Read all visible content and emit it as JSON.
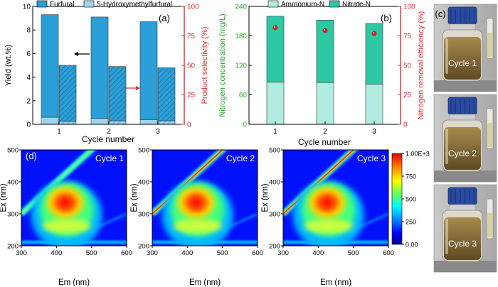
{
  "chart_data": [
    {
      "panel": "(a)",
      "type": "bar",
      "xlabel": "Cycle number",
      "categories": [
        "1",
        "2",
        "3"
      ],
      "left_axis": {
        "label": "Yield (wt.%)",
        "ylim": [
          0,
          10
        ],
        "ticks": [
          "0",
          "2",
          "4",
          "6",
          "8",
          "10"
        ]
      },
      "right_axis": {
        "label": "Product selectivity (%)",
        "ylim": [
          0,
          100
        ],
        "ticks": [
          "0",
          "25",
          "50",
          "75",
          "100"
        ]
      },
      "legend": [
        "Furfural",
        "5-Hydroxymethylfurfural"
      ],
      "series": [
        {
          "name": "Furfural yield (wt.%)",
          "axis": "left",
          "stack": "yield",
          "values": [
            8.7,
            8.6,
            8.3
          ]
        },
        {
          "name": "5-Hydroxymethylfurfural yield (wt.%)",
          "axis": "left",
          "stack": "yield",
          "values": [
            0.6,
            0.5,
            0.4
          ]
        },
        {
          "name": "Furfural selectivity (%)",
          "axis": "right",
          "stack": "selectivity",
          "hatched": true,
          "values": [
            47.5,
            46,
            45
          ]
        },
        {
          "name": "5-Hydroxymethylfurfural selectivity (%)",
          "axis": "right",
          "stack": "selectivity",
          "hatched": true,
          "values": [
            2.5,
            3,
            3
          ]
        }
      ],
      "arrows": [
        "left",
        "right"
      ]
    },
    {
      "panel": "(b)",
      "type": "bar",
      "xlabel": "Cycle number",
      "categories": [
        "1",
        "2",
        "3"
      ],
      "left_axis": {
        "label": "Nitrogen concentration (mg/L)",
        "ylim": [
          0,
          240
        ],
        "ticks": [
          "0",
          "60",
          "120",
          "180",
          "240"
        ]
      },
      "right_axis": {
        "label": "Nitrogen removal efficiency (%)",
        "ylim": [
          0,
          100
        ],
        "ticks": [
          "0",
          "25",
          "50",
          "75",
          "100"
        ]
      },
      "legend": [
        "Ammonium-N",
        "Nitrate-N"
      ],
      "series": [
        {
          "name": "Ammonium-N",
          "axis": "left",
          "stack": "n",
          "values": [
            86,
            85,
            82
          ]
        },
        {
          "name": "Nitrate-N",
          "axis": "left",
          "stack": "n",
          "values": [
            134,
            127,
            123
          ]
        },
        {
          "name": "Nitrogen removal efficiency (%)",
          "axis": "right",
          "type": "scatter",
          "values": [
            82,
            79.5,
            77
          ]
        }
      ]
    },
    {
      "panel": "(d)",
      "type": "heatmap",
      "xlabel": "Em (nm)",
      "ylabel": "Ex (nm)",
      "xlim": [
        300,
        600
      ],
      "ylim": [
        200,
        500
      ],
      "xticks": [
        "300",
        "400",
        "500",
        "600"
      ],
      "yticks": [
        "200",
        "300",
        "400",
        "500"
      ],
      "panels": [
        "Cycle 1",
        "Cycle 2",
        "Cycle 3"
      ],
      "colorbar": {
        "min": 0,
        "max": 1000,
        "ticks": [
          "0.00",
          "250",
          "500",
          "750",
          "1.00E+3"
        ]
      },
      "peak": {
        "em": 425,
        "ex": 335
      }
    }
  ],
  "photos": {
    "panel": "(c)",
    "labels": [
      "Cycle 1",
      "Cycle 2",
      "Cycle 3"
    ]
  },
  "colors": {
    "furfural": "#2a9fd8",
    "hmf": "#9fd4f0",
    "ammonium": "#b2ece0",
    "nitrate": "#2cc9a4",
    "efficiency_dot": "#e02020",
    "right_axis": "#e8282a",
    "left_axis_b": "#20b020"
  }
}
